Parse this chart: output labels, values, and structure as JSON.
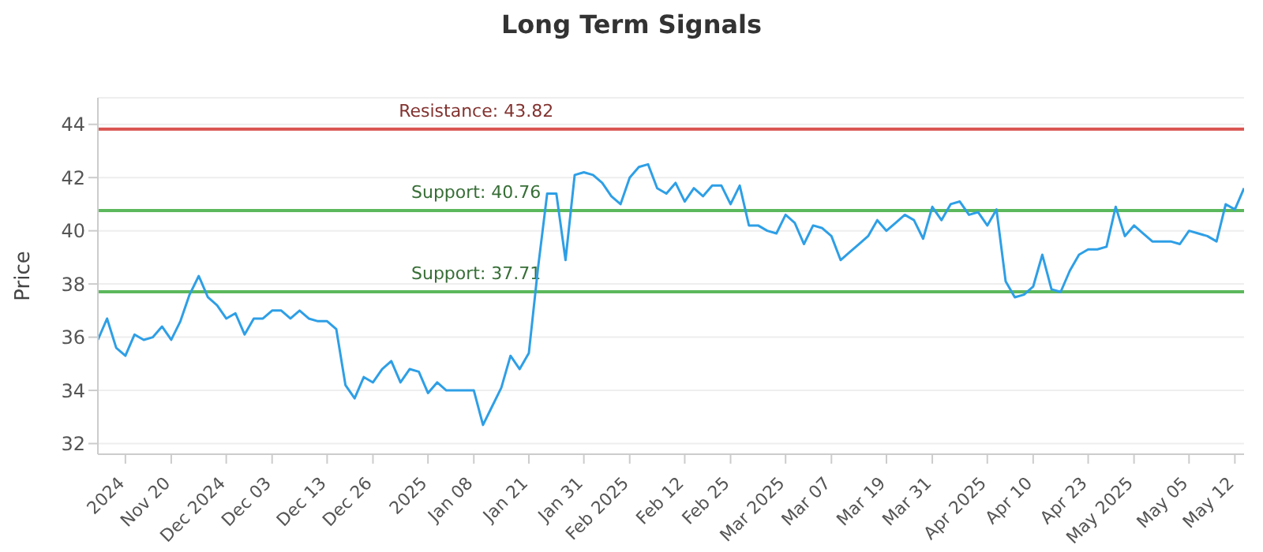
{
  "chart_data": {
    "type": "line",
    "title": "Long Term Signals",
    "ylabel": "Price",
    "categories": [
      null,
      null,
      null,
      "2024",
      null,
      null,
      null,
      null,
      "Nov 20",
      null,
      null,
      null,
      null,
      null,
      "Dec 2024",
      null,
      null,
      null,
      null,
      "Dec 03",
      null,
      null,
      null,
      null,
      null,
      "Dec 13",
      null,
      null,
      null,
      null,
      "Dec 26",
      null,
      null,
      null,
      null,
      null,
      "2025",
      null,
      null,
      null,
      null,
      "Jan 08",
      null,
      null,
      null,
      null,
      null,
      "Jan 21",
      null,
      null,
      null,
      null,
      null,
      "Jan 31",
      null,
      null,
      null,
      null,
      "Feb 2025",
      null,
      null,
      null,
      null,
      null,
      "Feb 12",
      null,
      null,
      null,
      null,
      "Feb 25",
      null,
      null,
      null,
      null,
      null,
      "Mar 2025",
      null,
      null,
      null,
      null,
      "Mar 07",
      null,
      null,
      null,
      null,
      null,
      "Mar 19",
      null,
      null,
      null,
      null,
      "Mar 31",
      null,
      null,
      null,
      null,
      null,
      "Apr 2025",
      null,
      null,
      null,
      null,
      "Apr 10",
      null,
      null,
      null,
      null,
      null,
      "Apr 23",
      null,
      null,
      null,
      null,
      "May 2025",
      null,
      null,
      null,
      null,
      null,
      "May 05",
      null,
      null,
      null,
      null,
      "May 12",
      null
    ],
    "series": [
      {
        "color": "#2e9fe6",
        "values": [
          35.9,
          36.7,
          35.6,
          35.3,
          36.1,
          35.9,
          36.0,
          36.4,
          35.9,
          36.6,
          37.6,
          38.3,
          37.5,
          37.2,
          36.7,
          36.9,
          36.1,
          36.7,
          36.7,
          37.0,
          37.0,
          36.7,
          37.0,
          36.7,
          36.6,
          36.6,
          36.3,
          34.2,
          33.7,
          34.5,
          34.3,
          34.8,
          35.1,
          34.3,
          34.8,
          34.7,
          33.9,
          34.3,
          34.0,
          34.0,
          34.0,
          34.0,
          32.7,
          33.4,
          34.1,
          35.3,
          34.8,
          35.4,
          38.6,
          41.4,
          41.4,
          38.9,
          42.1,
          42.2,
          42.1,
          41.8,
          41.3,
          41.0,
          42.0,
          42.4,
          42.5,
          41.6,
          41.4,
          41.8,
          41.1,
          41.6,
          41.3,
          41.7,
          41.7,
          41.0,
          41.7,
          40.2,
          40.2,
          40.0,
          39.9,
          40.6,
          40.3,
          39.5,
          40.2,
          40.1,
          39.8,
          38.9,
          39.2,
          39.5,
          39.8,
          40.4,
          40.0,
          40.3,
          40.6,
          40.4,
          39.7,
          40.9,
          40.4,
          41.0,
          41.1,
          40.6,
          40.7,
          40.2,
          40.8,
          38.1,
          37.5,
          37.6,
          37.9,
          39.1,
          37.8,
          37.7,
          38.5,
          39.1,
          39.3,
          39.3,
          39.4,
          40.9,
          39.8,
          40.2,
          39.9,
          39.6,
          39.6,
          39.6,
          39.5,
          40.0,
          39.9,
          39.8,
          39.6,
          41.0,
          40.8,
          41.6
        ]
      }
    ],
    "ylim": [
      31.6,
      45
    ],
    "yticks": [
      32,
      34,
      36,
      38,
      40,
      42,
      44
    ],
    "grid": "y",
    "marker": "none",
    "line_style": "solid",
    "legend": false,
    "ref_lines": [
      {
        "axis": "y",
        "value": 43.82,
        "label": "Resistance: 43.82",
        "color": "#d9534f"
      },
      {
        "axis": "y",
        "value": 40.76,
        "label": "Support: 40.76",
        "color": "#5cb85c"
      },
      {
        "axis": "y",
        "value": 37.71,
        "label": "Support: 37.71",
        "color": "#5cb85c"
      }
    ]
  }
}
